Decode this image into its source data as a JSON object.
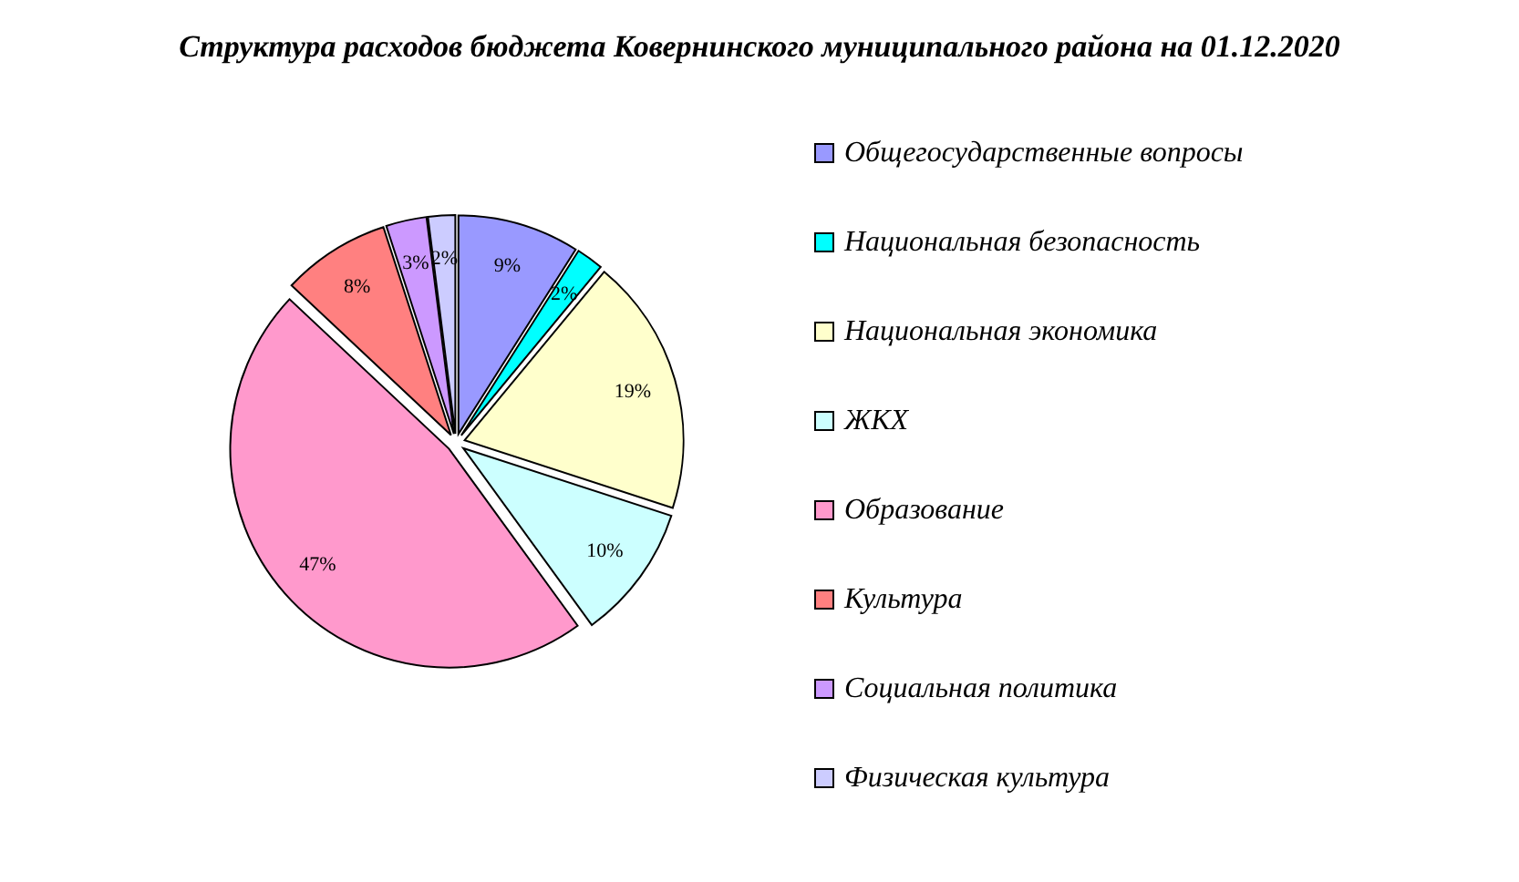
{
  "chart_data": {
    "type": "pie",
    "title": "Структура расходов бюджета Ковернинского муниципального района на 01.12.2020",
    "categories": [
      "Общегосударственные вопросы",
      "Национальная безопасность",
      "Национальная экономика",
      "ЖКХ",
      "Образование",
      "Культура",
      "Социальная политика",
      "Физическая культура"
    ],
    "values": [
      9,
      2,
      19,
      10,
      47,
      8,
      3,
      2
    ],
    "colors": [
      "#9999ff",
      "#00ffff",
      "#ffffcc",
      "#ccffff",
      "#ff99cc",
      "#ff8080",
      "#cc99ff",
      "#ccccff"
    ],
    "value_labels": [
      "9%",
      "2%",
      "19%",
      "10%",
      "47%",
      "8%",
      "3%",
      "2%"
    ],
    "legend": "right"
  }
}
